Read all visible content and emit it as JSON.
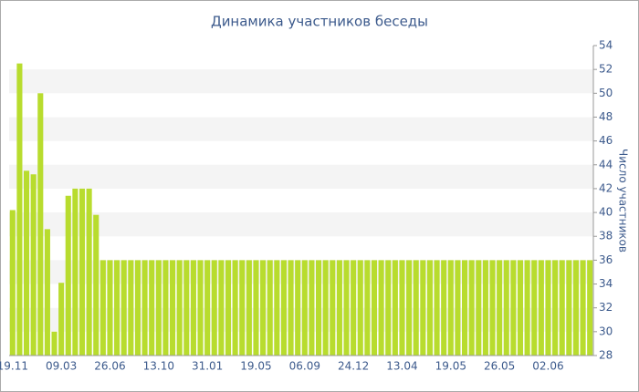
{
  "chart_data": {
    "type": "bar",
    "title": "Динамика участников беседы",
    "y_label": "Число участников",
    "categories": [
      "19.11",
      null,
      null,
      null,
      null,
      null,
      null,
      "09.03",
      null,
      null,
      null,
      null,
      null,
      null,
      "26.06",
      null,
      null,
      null,
      null,
      null,
      null,
      "13.10",
      null,
      null,
      null,
      null,
      null,
      null,
      "31.01",
      null,
      null,
      null,
      null,
      null,
      null,
      "19.05",
      null,
      null,
      null,
      null,
      null,
      null,
      "06.09",
      null,
      null,
      null,
      null,
      null,
      null,
      "24.12",
      null,
      null,
      null,
      null,
      null,
      null,
      "13.04",
      null,
      null,
      null,
      null,
      null,
      null,
      "19.05",
      null,
      null,
      null,
      null,
      null,
      null,
      "26.05",
      null,
      null,
      null,
      null,
      null,
      null,
      "02.06",
      null,
      null,
      null,
      null,
      null,
      null
    ],
    "values": [
      40.2,
      52.5,
      43.5,
      43.2,
      50,
      38.6,
      30,
      34.1,
      41.4,
      42,
      42,
      42,
      39.8,
      36,
      36,
      36,
      36,
      36,
      36,
      36,
      36,
      36,
      36,
      36,
      36,
      36,
      36,
      36,
      36,
      36,
      36,
      36,
      36,
      36,
      36,
      36,
      36,
      36,
      36,
      36,
      36,
      36,
      36,
      36,
      36,
      36,
      36,
      36,
      36,
      36,
      36,
      36,
      36,
      36,
      36,
      36,
      36,
      36,
      36,
      36,
      36,
      36,
      36,
      36,
      36,
      36,
      36,
      36,
      36,
      36,
      36,
      36,
      36,
      36,
      36,
      36,
      36,
      36,
      36,
      36,
      36,
      36,
      36,
      36
    ],
    "color": "#b8dc2e",
    "ylim": [
      28,
      54
    ],
    "yticks": [
      28,
      30,
      32,
      34,
      36,
      38,
      40,
      42,
      44,
      46,
      48,
      50,
      52,
      54
    ],
    "grid": "bands",
    "y_axis_side": "right"
  }
}
